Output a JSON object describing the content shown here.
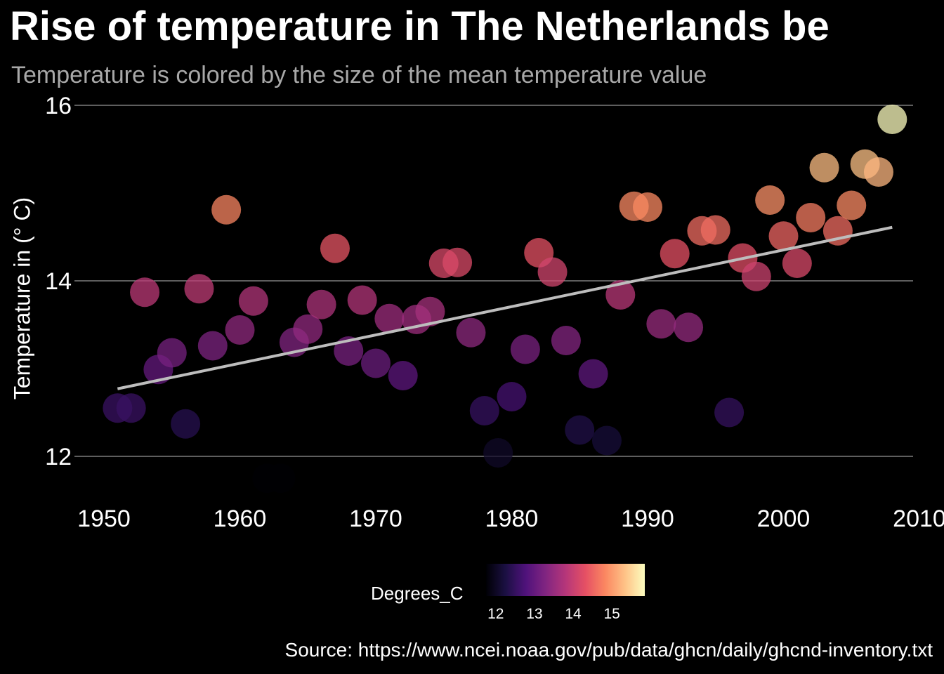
{
  "header": {
    "title": "Rise of temperature in The Netherlands be",
    "subtitle": "Temperature is colored by the size of the mean temperature value"
  },
  "footer": {
    "source": "Source: https://www.ncei.noaa.gov/pub/data/ghcn/daily/ghcnd-inventory.txt"
  },
  "legend": {
    "title": "Degrees_C",
    "ticks": [
      12,
      13,
      14,
      15
    ],
    "range": [
      11.75,
      15.85
    ],
    "colors": [
      "#000004",
      "#1c1044",
      "#4f127b",
      "#812581",
      "#b5367a",
      "#e55064",
      "#fb8761",
      "#fec287",
      "#fcfdbf"
    ]
  },
  "chart_data": {
    "type": "scatter",
    "title": "Rise of temperature in The Netherlands be",
    "subtitle": "Temperature is colored by the size of the mean temperature value",
    "xlabel": "",
    "ylabel": "Temperature in (° C)",
    "xlim": [
      1950,
      2010
    ],
    "ylim": [
      12,
      16
    ],
    "x_ticks": [
      1950,
      1960,
      1970,
      1980,
      1990,
      2000,
      2010
    ],
    "y_ticks": [
      12,
      14,
      16
    ],
    "grid": "horizontal major gridlines",
    "legend_position": "bottom",
    "colormap": "magma",
    "trend_line": {
      "x": [
        1951,
        2008
      ],
      "y": [
        12.77,
        14.61
      ],
      "color": "#bdbdbd"
    },
    "points": [
      {
        "x": 1951,
        "y": 12.55
      },
      {
        "x": 1952,
        "y": 12.55
      },
      {
        "x": 1953,
        "y": 13.87
      },
      {
        "x": 1954,
        "y": 12.99
      },
      {
        "x": 1955,
        "y": 13.18
      },
      {
        "x": 1956,
        "y": 12.37
      },
      {
        "x": 1957,
        "y": 13.91
      },
      {
        "x": 1958,
        "y": 13.26
      },
      {
        "x": 1959,
        "y": 14.81
      },
      {
        "x": 1960,
        "y": 13.44
      },
      {
        "x": 1961,
        "y": 13.77
      },
      {
        "x": 1962,
        "y": 11.75
      },
      {
        "x": 1963,
        "y": 11.75
      },
      {
        "x": 1964,
        "y": 13.3
      },
      {
        "x": 1965,
        "y": 13.45
      },
      {
        "x": 1966,
        "y": 13.73
      },
      {
        "x": 1967,
        "y": 14.37
      },
      {
        "x": 1968,
        "y": 13.2
      },
      {
        "x": 1969,
        "y": 13.78
      },
      {
        "x": 1970,
        "y": 13.06
      },
      {
        "x": 1971,
        "y": 13.57
      },
      {
        "x": 1972,
        "y": 12.92
      },
      {
        "x": 1973,
        "y": 13.56
      },
      {
        "x": 1974,
        "y": 13.65
      },
      {
        "x": 1975,
        "y": 14.2
      },
      {
        "x": 1976,
        "y": 14.21
      },
      {
        "x": 1977,
        "y": 13.41
      },
      {
        "x": 1978,
        "y": 12.52
      },
      {
        "x": 1979,
        "y": 12.04
      },
      {
        "x": 1980,
        "y": 12.68
      },
      {
        "x": 1981,
        "y": 13.22
      },
      {
        "x": 1982,
        "y": 14.32
      },
      {
        "x": 1983,
        "y": 14.1
      },
      {
        "x": 1984,
        "y": 13.32
      },
      {
        "x": 1985,
        "y": 12.3
      },
      {
        "x": 1986,
        "y": 12.94
      },
      {
        "x": 1987,
        "y": 12.18
      },
      {
        "x": 1988,
        "y": 13.84
      },
      {
        "x": 1989,
        "y": 14.85
      },
      {
        "x": 1990,
        "y": 14.84
      },
      {
        "x": 1991,
        "y": 13.51
      },
      {
        "x": 1992,
        "y": 14.31
      },
      {
        "x": 1993,
        "y": 13.47
      },
      {
        "x": 1994,
        "y": 14.57
      },
      {
        "x": 1995,
        "y": 14.58
      },
      {
        "x": 1996,
        "y": 12.5
      },
      {
        "x": 1997,
        "y": 14.26
      },
      {
        "x": 1998,
        "y": 14.05
      },
      {
        "x": 1999,
        "y": 14.92
      },
      {
        "x": 2000,
        "y": 14.51
      },
      {
        "x": 2001,
        "y": 14.2
      },
      {
        "x": 2002,
        "y": 14.72
      },
      {
        "x": 2003,
        "y": 15.29
      },
      {
        "x": 2004,
        "y": 14.57
      },
      {
        "x": 2005,
        "y": 14.86
      },
      {
        "x": 2006,
        "y": 15.33
      },
      {
        "x": 2007,
        "y": 15.24
      },
      {
        "x": 2008,
        "y": 15.84
      }
    ]
  }
}
